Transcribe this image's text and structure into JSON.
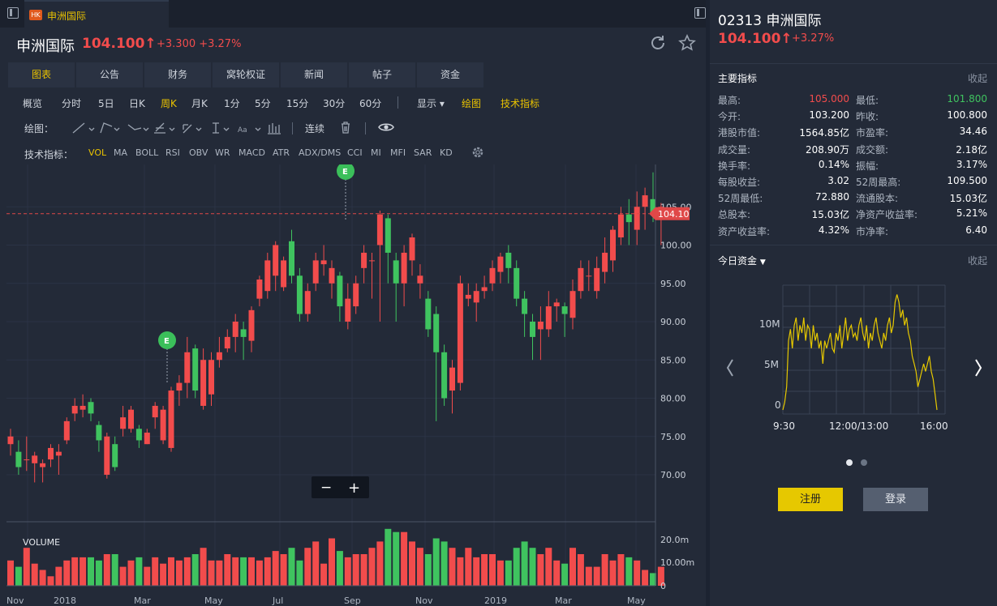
{
  "tab": {
    "badge": "HK",
    "name": "申洲国际"
  },
  "header": {
    "name": "申洲国际",
    "price": "104.100↑",
    "change": "+3.300 +3.27%"
  },
  "tabs": [
    {
      "label": "图表",
      "active": true
    },
    {
      "label": "公告"
    },
    {
      "label": "财务"
    },
    {
      "label": "窝轮权证"
    },
    {
      "label": "新闻"
    },
    {
      "label": "帖子"
    },
    {
      "label": "资金"
    }
  ],
  "periods": [
    "概览",
    "分时",
    "5日",
    "日K",
    "周K",
    "月K",
    "1分",
    "5分",
    "15分",
    "30分",
    "60分"
  ],
  "period_active": "周K",
  "display_label": "显示",
  "draw_label": "绘图",
  "tech_label": "技术指标",
  "drawbar": {
    "label": "绘图：",
    "continuous": "连续"
  },
  "indicators": {
    "label": "技术指标：",
    "items": [
      "VOL",
      "MA",
      "BOLL",
      "RSI",
      "OBV",
      "WR",
      "MACD",
      "ATR",
      "ADX/DMS",
      "CCI",
      "MI",
      "MFI",
      "SAR",
      "KD"
    ],
    "active": "VOL"
  },
  "chart_data": {
    "type": "candlestick",
    "price_ticks": [
      "105.00",
      "100.00",
      "95.00",
      "90.00",
      "85.00",
      "80.00",
      "75.00",
      "70.00"
    ],
    "last_price_tag": "104.10",
    "event_marker": "E",
    "volume_label": "VOLUME",
    "volume_ticks": [
      "20.0m",
      "10.00m",
      "0"
    ],
    "x_labels": [
      "Nov",
      "2018",
      "Mar",
      "May",
      "Jul",
      "Sep",
      "Nov",
      "2019",
      "Mar",
      "May"
    ],
    "zoom_out": "−",
    "zoom_in": "+"
  },
  "right": {
    "code_name": "02313 申洲国际",
    "price": "104.100↑",
    "change": "+3.27%",
    "main_title": "主要指标",
    "collapse": "收起",
    "metrics": [
      [
        "最高:",
        "105.000",
        "最低:",
        "101.800"
      ],
      [
        "今开:",
        "103.200",
        "昨收:",
        "100.800"
      ],
      [
        "港股市值:",
        "1564.85亿",
        "市盈率:",
        "34.46"
      ],
      [
        "成交量:",
        "208.90万",
        "成交额:",
        "2.18亿"
      ],
      [
        "换手率:",
        "0.14%",
        "振幅:",
        "3.17%"
      ],
      [
        "每股收益:",
        "3.02",
        "52周最高:",
        "109.500"
      ],
      [
        "52周最低:",
        "72.880",
        "流通股本:",
        "15.03亿"
      ],
      [
        "总股本:",
        "15.03亿",
        "净资产收益率:",
        "5.21%"
      ],
      [
        "资产收益率:",
        "4.32%",
        "市净率:",
        "6.40"
      ]
    ],
    "flow_title": "今日资金",
    "flow_chart": {
      "y_labels": [
        "10M",
        "5M",
        "0"
      ],
      "x_labels": [
        "9:30",
        "12:00/13:00",
        "16:00"
      ]
    },
    "register": "注册",
    "login": "登录",
    "colors": {
      "up": "#f24c4c",
      "down": "#3fc35f",
      "accent": "#e9c200"
    }
  }
}
